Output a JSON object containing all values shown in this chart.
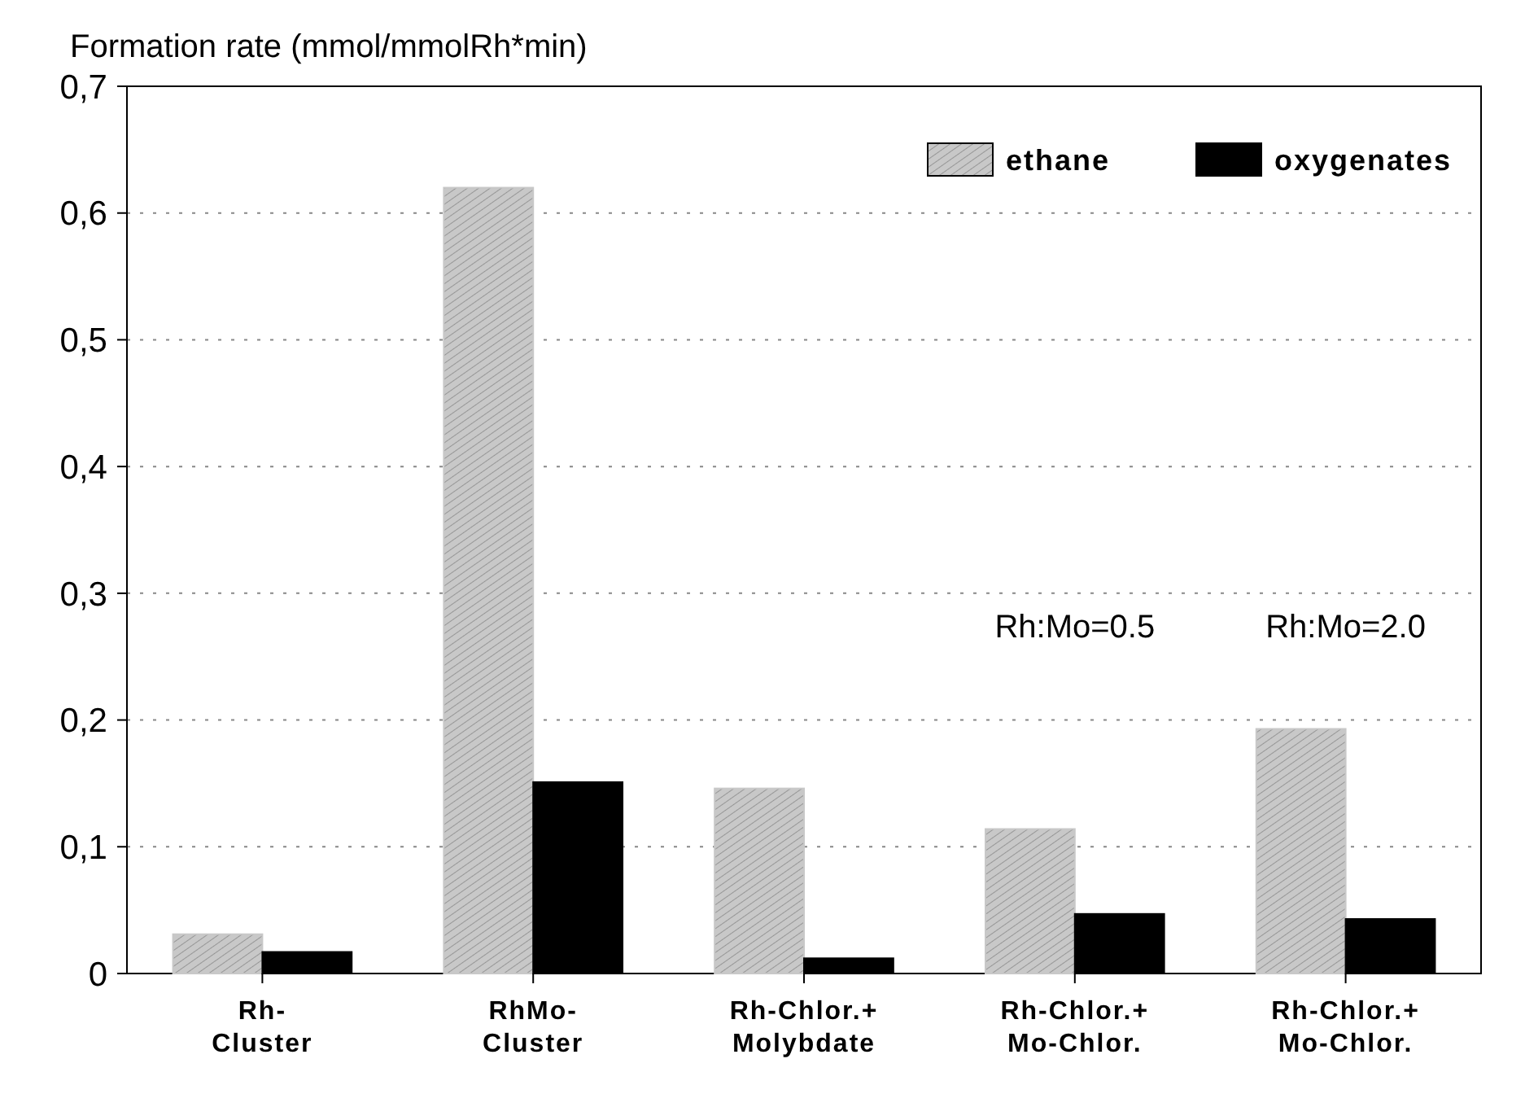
{
  "chart_data": {
    "type": "bar",
    "ylabel": "Formation rate (mmol/mmolRh*min)",
    "categories": [
      "Rh-\nCluster",
      "RhMo-\nCluster",
      "Rh-Chlor.+\nMolybdate",
      "Rh-Chlor.+\nMo-Chlor.",
      "Rh-Chlor.+\nMo-Chlor."
    ],
    "series": [
      {
        "name": "ethane",
        "color": "#c8c8c8",
        "values": [
          0.031,
          0.62,
          0.146,
          0.114,
          0.193
        ]
      },
      {
        "name": "oxygenates",
        "color": "#000000",
        "values": [
          0.017,
          0.151,
          0.012,
          0.047,
          0.043
        ]
      }
    ],
    "ylim": [
      0,
      0.7
    ],
    "yticks": [
      {
        "value": 0,
        "label": "0"
      },
      {
        "value": 0.1,
        "label": "0,1"
      },
      {
        "value": 0.2,
        "label": "0,2"
      },
      {
        "value": 0.3,
        "label": "0,3"
      },
      {
        "value": 0.4,
        "label": "0,4"
      },
      {
        "value": 0.5,
        "label": "0,5"
      },
      {
        "value": 0.6,
        "label": "0,6"
      },
      {
        "value": 0.7,
        "label": "0,7"
      }
    ],
    "grid": "y",
    "legend": "top right",
    "annotations": [
      "Rh:Mo=0.5",
      "Rh:Mo=2.0"
    ]
  }
}
